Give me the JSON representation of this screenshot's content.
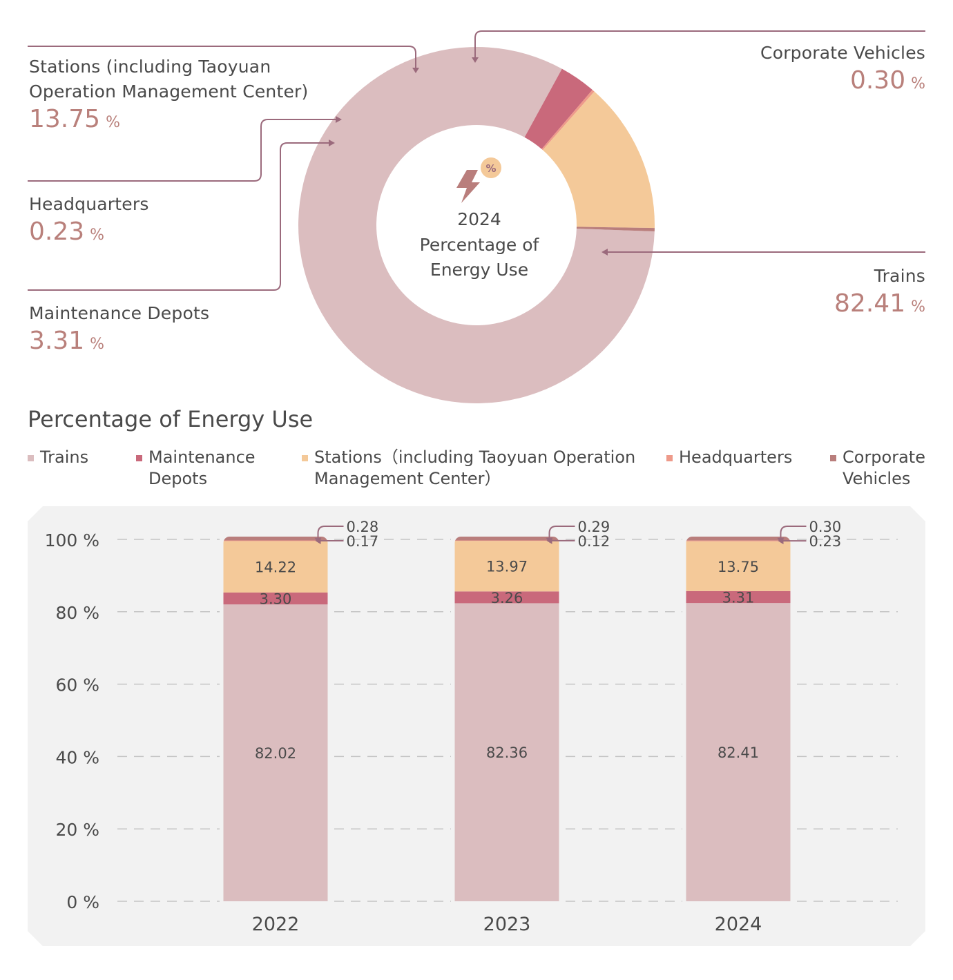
{
  "donut": {
    "center_lines": [
      "2024",
      "Percentage of",
      "Energy Use"
    ],
    "icon": "lightning-percent-badge-icon",
    "unit": "%",
    "labels": {
      "stations": {
        "name_lines": [
          "Stations (including Taoyuan",
          "Operation Management Center)"
        ],
        "value": "13.75"
      },
      "headquarters": {
        "name": "Headquarters",
        "value": "0.23"
      },
      "maintenance": {
        "name": "Maintenance Depots",
        "value": "3.31"
      },
      "corporate": {
        "name": "Corporate Vehicles",
        "value": "0.30"
      },
      "trains": {
        "name": "Trains",
        "value": "82.41"
      }
    }
  },
  "bar_section": {
    "title": "Percentage of Energy Use",
    "legend": [
      {
        "key": "trains",
        "lines": [
          "Trains"
        ]
      },
      {
        "key": "maintenance",
        "lines": [
          "Maintenance",
          "Depots"
        ]
      },
      {
        "key": "stations",
        "lines": [
          "Stations（including Taoyuan Operation",
          "Management Center）"
        ]
      },
      {
        "key": "headquarters",
        "lines": [
          "Headquarters"
        ]
      },
      {
        "key": "corporate",
        "lines": [
          "Corporate",
          "Vehicles"
        ]
      }
    ]
  },
  "colors": {
    "trains": "#dbbdbf",
    "maintenance": "#c9697b",
    "stations": "#f4c999",
    "headquarters": "#ee9a8a",
    "corporate": "#b97e7c",
    "accent": "#b9807b",
    "leader": "#9b6a7c",
    "panel": "#f2f2f2"
  },
  "chart_data": [
    {
      "type": "pie",
      "title": "2024 Percentage of Energy Use",
      "categories": [
        "Trains",
        "Maintenance Depots",
        "Headquarters",
        "Stations (including Taoyuan Operation Management Center)",
        "Corporate Vehicles"
      ],
      "values": [
        82.41,
        3.31,
        0.23,
        13.75,
        0.3
      ],
      "unit": "%"
    },
    {
      "type": "bar",
      "stacked": true,
      "title": "Percentage of Energy Use",
      "categories": [
        "2022",
        "2023",
        "2024"
      ],
      "series": [
        {
          "name": "Trains",
          "key": "trains",
          "values": [
            82.02,
            82.36,
            82.41
          ]
        },
        {
          "name": "Maintenance Depots",
          "key": "maintenance",
          "values": [
            3.3,
            3.26,
            3.31
          ]
        },
        {
          "name": "Stations (including Taoyuan Operation Management Center)",
          "key": "stations",
          "values": [
            14.22,
            13.97,
            13.75
          ]
        },
        {
          "name": "Headquarters",
          "key": "headquarters",
          "values": [
            0.17,
            0.12,
            0.23
          ]
        },
        {
          "name": "Corporate Vehicles",
          "key": "corporate",
          "values": [
            0.28,
            0.29,
            0.3
          ]
        }
      ],
      "value_labels": {
        "trains": [
          "82.02",
          "82.36",
          "82.41"
        ],
        "maintenance": [
          "3.30",
          "3.26",
          "3.31"
        ],
        "stations": [
          "14.22",
          "13.97",
          "13.75"
        ],
        "headquarters": [
          "0.17",
          "0.12",
          "0.23"
        ],
        "corporate": [
          "0.28",
          "0.29",
          "0.30"
        ]
      },
      "yticks": [
        "0 %",
        "20 %",
        "40 %",
        "60 %",
        "80 %",
        "100 %"
      ],
      "ytick_values": [
        0,
        20,
        40,
        60,
        80,
        100
      ],
      "ylim": [
        0,
        100
      ],
      "grid": "dashed-horizontal",
      "legend": "top",
      "xlabel": "",
      "ylabel": ""
    }
  ]
}
